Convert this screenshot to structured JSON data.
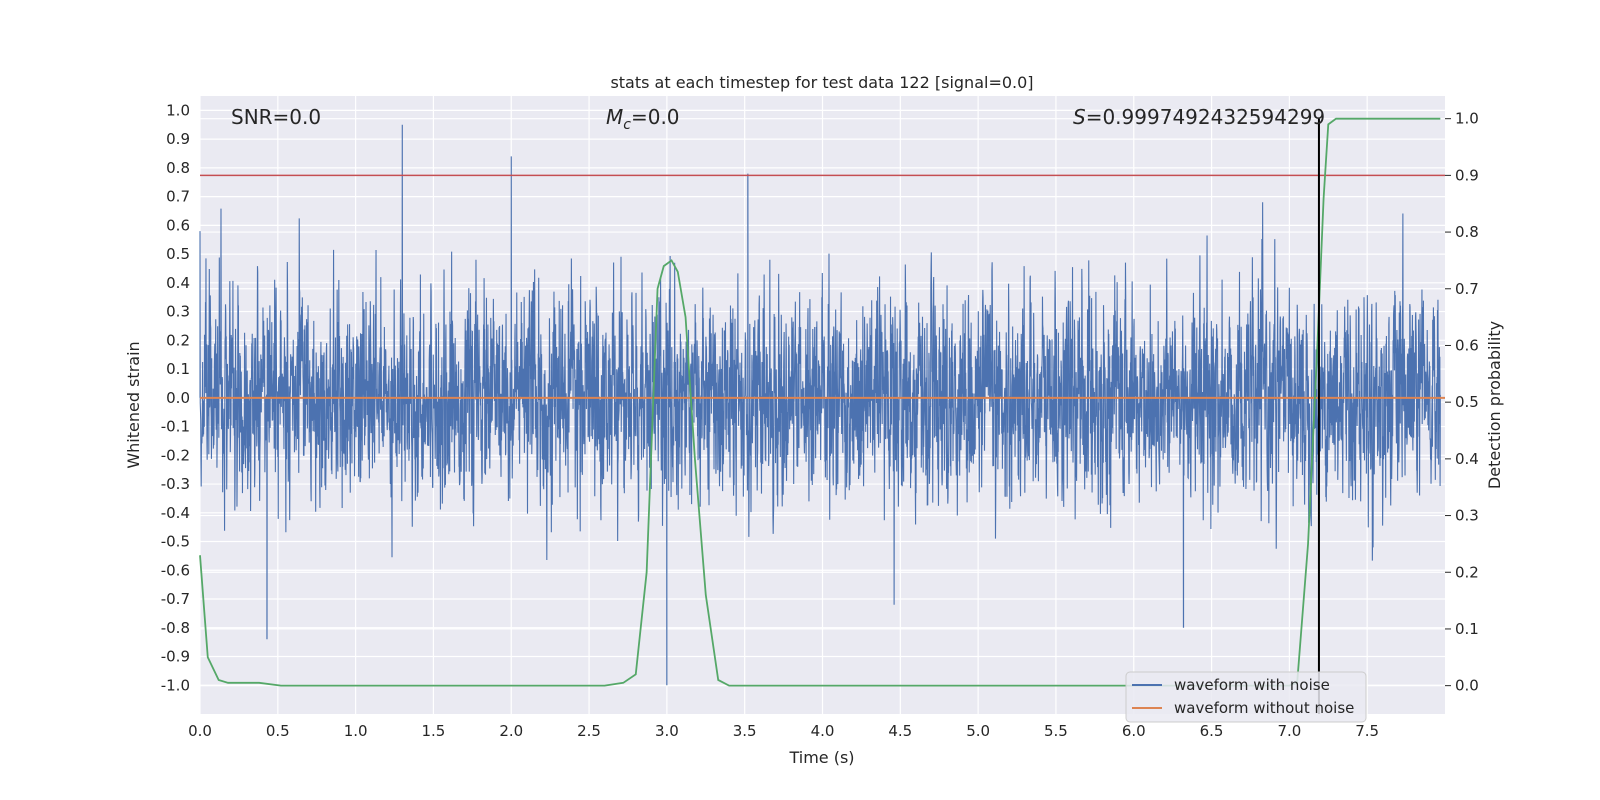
{
  "chart_data": {
    "type": "line",
    "title": "stats at each timestep for test data 122 [signal=0.0]",
    "xlabel": "Time (s)",
    "ylabel": "Whitened strain",
    "y2label": "Detection probability",
    "xlim": [
      0.0,
      8.0
    ],
    "ylim": [
      -1.1,
      1.05
    ],
    "y2lim": [
      -0.05,
      1.04
    ],
    "xticks": [
      "0.0",
      "0.5",
      "1.0",
      "1.5",
      "2.0",
      "2.5",
      "3.0",
      "3.5",
      "4.0",
      "4.5",
      "5.0",
      "5.5",
      "6.0",
      "6.5",
      "7.0",
      "7.5"
    ],
    "yticks": [
      "-1.0",
      "-0.9",
      "-0.8",
      "-0.7",
      "-0.6",
      "-0.5",
      "-0.4",
      "-0.3",
      "-0.2",
      "-0.1",
      "0.0",
      "0.1",
      "0.2",
      "0.3",
      "0.4",
      "0.5",
      "0.6",
      "0.7",
      "0.8",
      "0.9",
      "1.0"
    ],
    "y2ticks": [
      "0.0",
      "0.1",
      "0.2",
      "0.3",
      "0.4",
      "0.5",
      "0.6",
      "0.7",
      "0.8",
      "0.9",
      "1.0"
    ],
    "grid": true,
    "legend_position": "lower-right",
    "annotations": {
      "snr": "SNR=0.0",
      "mc_symbol": "M",
      "mc_sub": "c",
      "mc_value": "=0.0",
      "s_symbol": "S",
      "s_value": "=0.9997492432594299"
    },
    "series": [
      {
        "name": "waveform with noise",
        "axis": "left",
        "color": "#4c72b0",
        "description_points": {
          "x": [
            0.0,
            1.3,
            2.0,
            3.0,
            3.05,
            3.52,
            0.43,
            6.32
          ],
          "y": [
            0.58,
            0.95,
            0.84,
            -1.0,
            0.47,
            0.78,
            -0.84,
            -0.8
          ]
        }
      },
      {
        "name": "waveform without noise",
        "axis": "left",
        "color": "#dd8452",
        "x": [
          0.0,
          8.0
        ],
        "y": [
          0.0,
          0.0
        ]
      },
      {
        "name": "",
        "axis": "right",
        "color": "#55a868",
        "x": [
          0.0,
          0.05,
          0.12,
          0.18,
          0.25,
          0.38,
          0.52,
          0.7,
          1.0,
          2.0,
          2.6,
          2.72,
          2.8,
          2.87,
          2.94,
          2.98,
          3.03,
          3.07,
          3.12,
          3.18,
          3.25,
          3.33,
          3.4,
          4.0,
          5.0,
          6.0,
          7.0,
          7.05,
          7.12,
          7.18,
          7.22,
          7.25,
          7.3,
          7.5,
          7.7,
          7.97
        ],
        "y": [
          0.23,
          0.05,
          0.01,
          0.005,
          0.005,
          0.005,
          0.0,
          0.0,
          0.0,
          0.0,
          0.0,
          0.005,
          0.02,
          0.2,
          0.7,
          0.74,
          0.75,
          0.73,
          0.65,
          0.4,
          0.16,
          0.01,
          0.0,
          0.0,
          0.0,
          0.0,
          0.0,
          0.005,
          0.25,
          0.6,
          0.86,
          0.99,
          1.0,
          1.0,
          1.0,
          1.0
        ]
      }
    ],
    "hlines": [
      {
        "axis": "right",
        "y": 0.9,
        "color": "#c44e52"
      }
    ],
    "vlines": [
      {
        "x": 7.19,
        "color": "#000000"
      }
    ]
  }
}
